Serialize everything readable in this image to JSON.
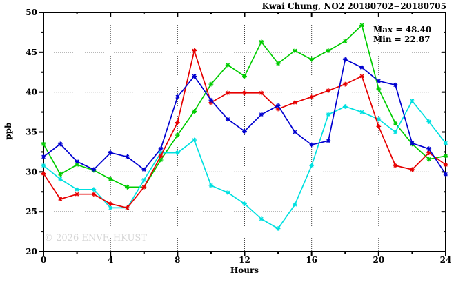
{
  "title": "Kwai Chung, NO2 20180702−20180705",
  "stats": {
    "max_label": "Max = 48.40",
    "min_label": "Min = 22.87"
  },
  "watermark": "© 2026 ENVF, HKUST",
  "chart_data": {
    "type": "line",
    "title": "Kwai Chung, NO2 20180702−20180705",
    "xlabel": "Hours",
    "ylabel": "ppb",
    "xlim": [
      0,
      24
    ],
    "ylim": [
      20,
      50
    ],
    "x_major_ticks": [
      0,
      4,
      8,
      12,
      16,
      20,
      24
    ],
    "x_minor_step": 2,
    "y_major_ticks": [
      20,
      25,
      30,
      35,
      40,
      45,
      50
    ],
    "y_minor_step": 2.5,
    "grid": "dotted lines at major ticks",
    "legend_position": "none",
    "max_value": 48.4,
    "min_value": 22.87,
    "x": [
      0,
      1,
      2,
      3,
      4,
      5,
      6,
      7,
      8,
      9,
      10,
      11,
      12,
      13,
      14,
      15,
      16,
      17,
      18,
      19,
      20,
      21,
      22,
      23,
      24
    ],
    "series": [
      {
        "name": "series-green",
        "color": "#00cc00",
        "values": [
          33.5,
          29.7,
          30.9,
          30.2,
          29.1,
          28.1,
          28.1,
          31.5,
          34.6,
          37.6,
          41.0,
          43.4,
          42.0,
          46.3,
          43.6,
          45.2,
          44.1,
          45.2,
          46.4,
          48.4,
          40.4,
          36.1,
          33.5,
          31.6,
          32.0
        ]
      },
      {
        "name": "series-cyan",
        "color": "#00e0e0",
        "values": [
          30.8,
          29.1,
          27.8,
          27.8,
          25.5,
          25.5,
          29.0,
          32.4,
          32.4,
          34.0,
          28.3,
          27.4,
          26.0,
          24.1,
          22.9,
          25.9,
          30.8,
          37.2,
          38.2,
          37.5,
          36.6,
          35.0,
          38.9,
          36.3,
          33.6
        ]
      },
      {
        "name": "series-red",
        "color": "#e60000",
        "values": [
          29.8,
          26.6,
          27.2,
          27.2,
          26.0,
          25.5,
          28.1,
          32.0,
          36.2,
          45.2,
          38.7,
          39.9,
          39.9,
          39.9,
          37.9,
          38.7,
          39.4,
          40.2,
          41.0,
          42.0,
          35.7,
          30.8,
          30.3,
          32.4,
          30.9
        ]
      },
      {
        "name": "series-blue",
        "color": "#0000d0",
        "values": [
          31.9,
          33.5,
          31.3,
          30.3,
          32.4,
          31.9,
          30.3,
          32.9,
          39.4,
          42.0,
          39.0,
          36.6,
          35.1,
          37.2,
          38.3,
          35.0,
          33.4,
          33.9,
          44.1,
          43.1,
          41.4,
          40.9,
          33.6,
          32.9,
          29.7
        ]
      }
    ]
  }
}
